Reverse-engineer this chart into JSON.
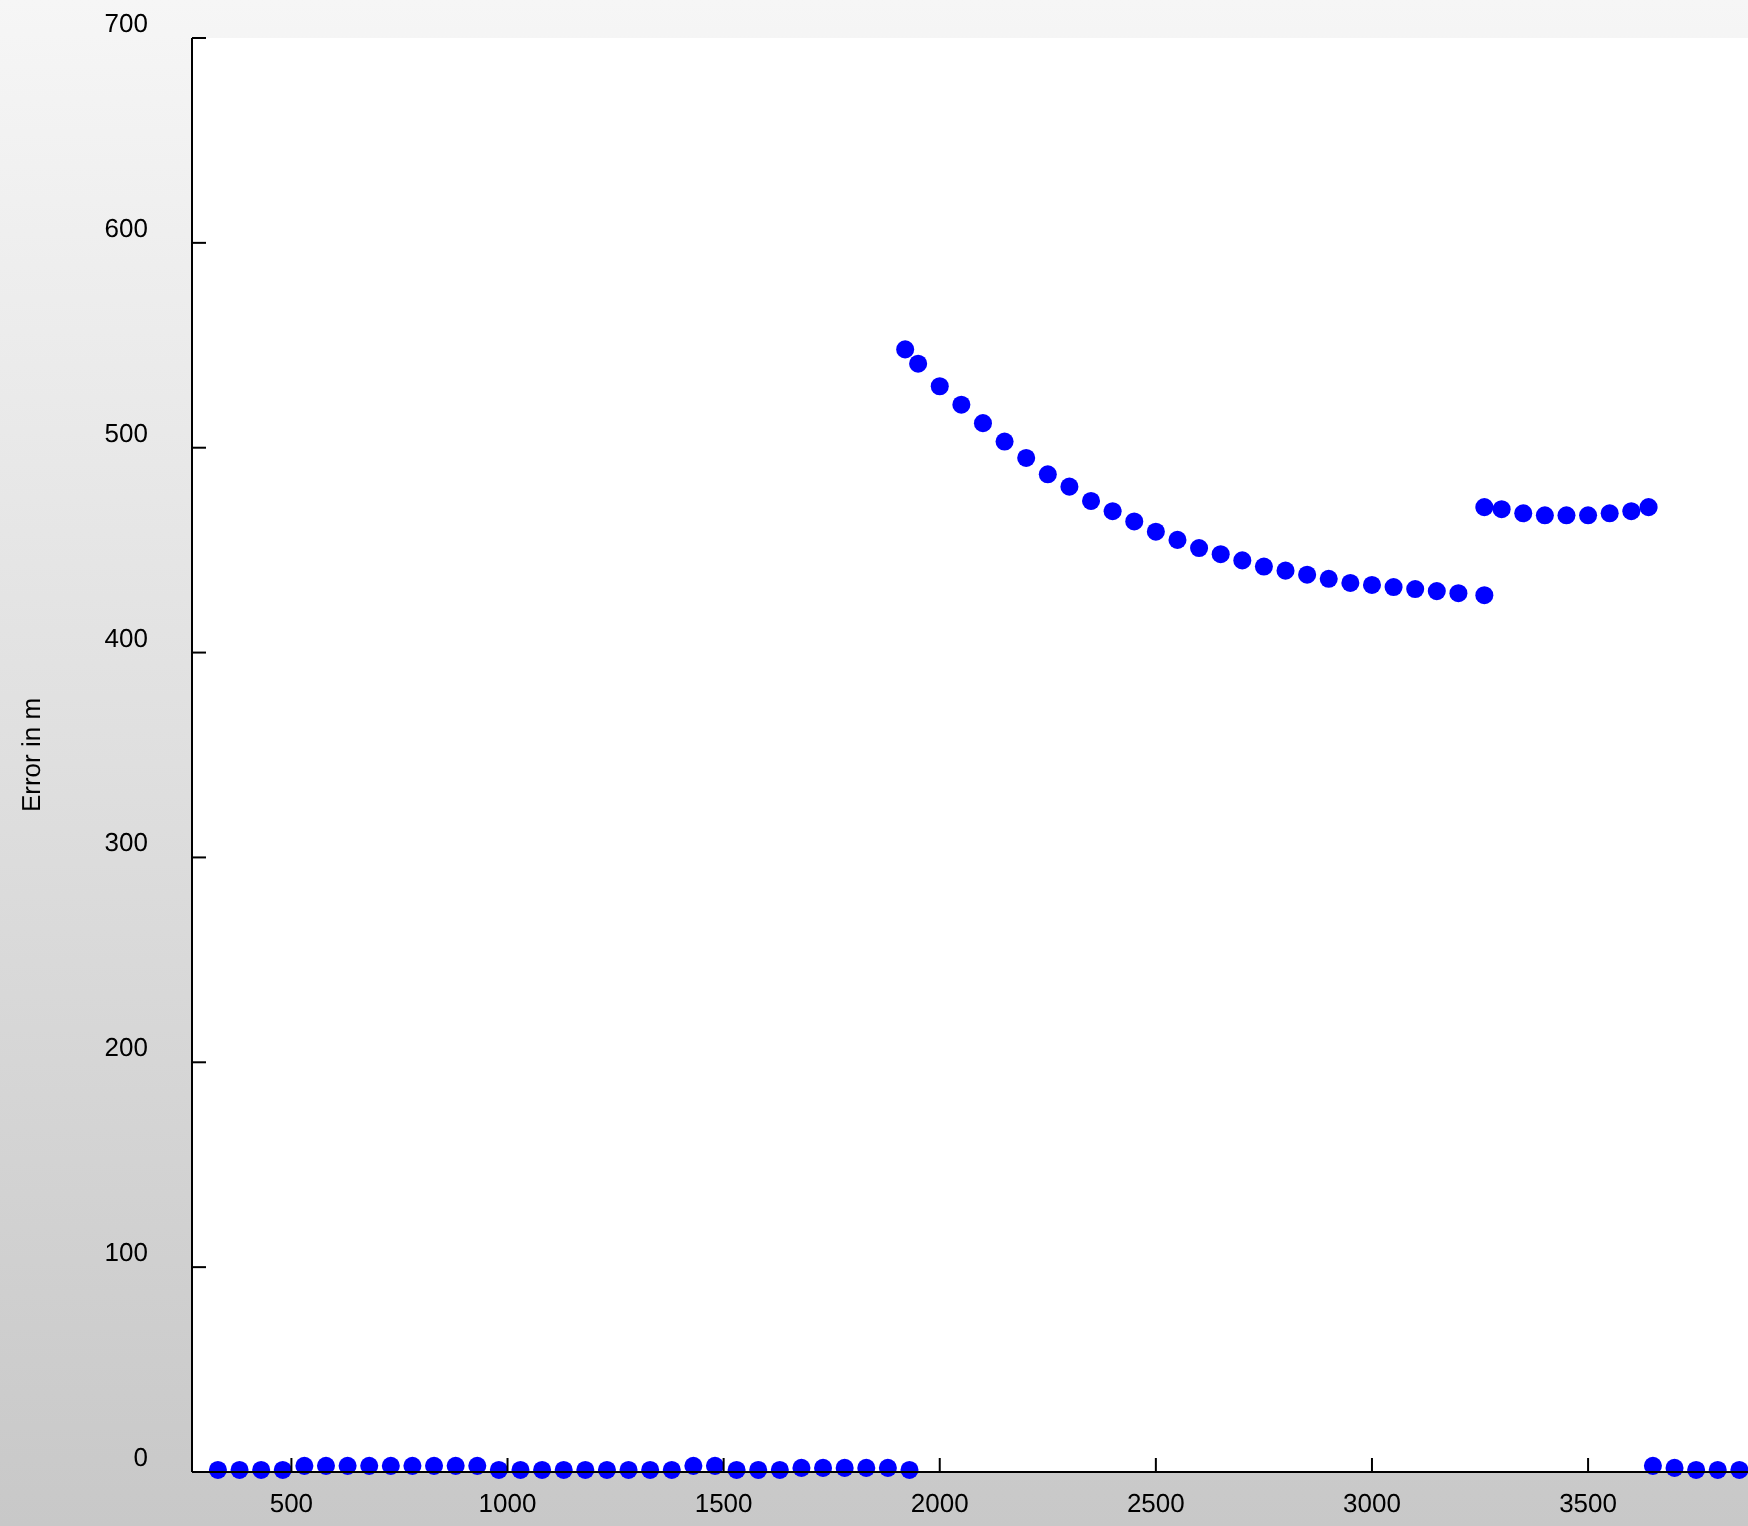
{
  "chart_data": {
    "type": "scatter",
    "ylabel": "Error in m",
    "series": [
      {
        "color": "#0000ff",
        "x": [
          330,
          380,
          430,
          480,
          530,
          580,
          630,
          680,
          730,
          780,
          830,
          880,
          930,
          980,
          1030,
          1080,
          1130,
          1180,
          1230,
          1280,
          1330,
          1380,
          1430,
          1480,
          1530,
          1580,
          1630,
          1680,
          1730,
          1780,
          1830,
          1880,
          1930,
          1920,
          1950,
          2000,
          2050,
          2100,
          2150,
          2200,
          2250,
          2300,
          2350,
          2400,
          2450,
          2500,
          2550,
          2600,
          2650,
          2700,
          2750,
          2800,
          2850,
          2900,
          2950,
          3000,
          3050,
          3100,
          3150,
          3200,
          3260,
          3260,
          3300,
          3350,
          3400,
          3450,
          3500,
          3550,
          3600,
          3640,
          3650,
          3700,
          3750,
          3800,
          3850
        ],
        "values": [
          1,
          1,
          1,
          1,
          3,
          3,
          3,
          3,
          3,
          3,
          3,
          3,
          3,
          1,
          1,
          1,
          1,
          1,
          1,
          1,
          1,
          1,
          3,
          3,
          1,
          1,
          1,
          2,
          2,
          2,
          2,
          2,
          1,
          548,
          541,
          530,
          521,
          512,
          503,
          495,
          487,
          481,
          474,
          469,
          464,
          459,
          455,
          451,
          448,
          445,
          442,
          440,
          438,
          436,
          434,
          433,
          432,
          431,
          430,
          429,
          428,
          471,
          470,
          468,
          467,
          467,
          467,
          468,
          469,
          471,
          3,
          2,
          1,
          1,
          1
        ]
      }
    ],
    "xlim": [
      270,
      3870
    ],
    "ylim": [
      0,
      700
    ],
    "xticks": [
      500,
      1000,
      1500,
      2000,
      2500,
      3000,
      3500
    ],
    "yticks": [
      0,
      100,
      200,
      300,
      400,
      500,
      600,
      700
    ],
    "marker": "circle"
  }
}
